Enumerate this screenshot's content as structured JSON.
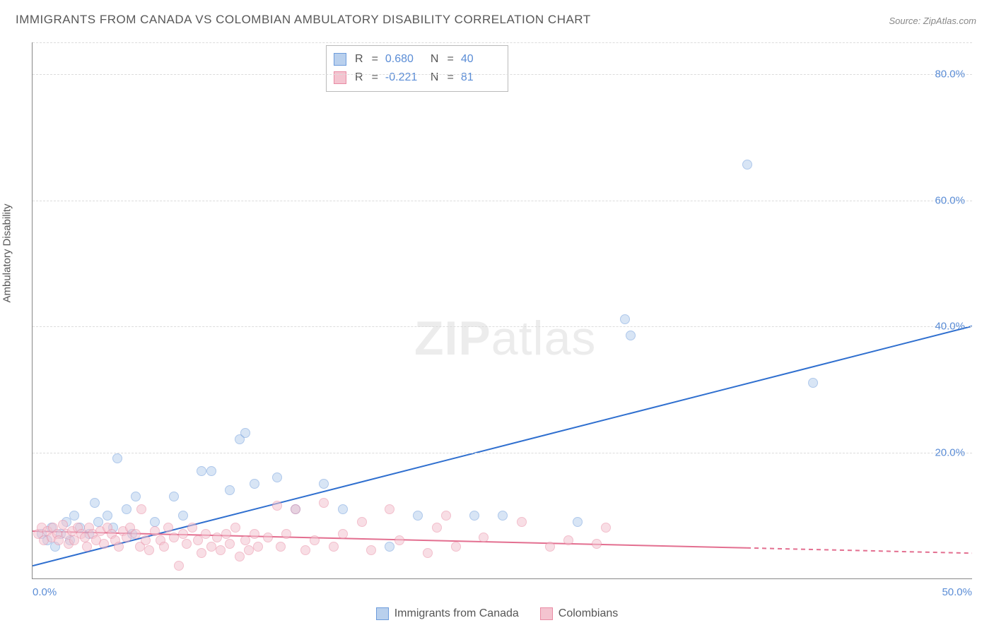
{
  "title": "IMMIGRANTS FROM CANADA VS COLOMBIAN AMBULATORY DISABILITY CORRELATION CHART",
  "source": "Source: ZipAtlas.com",
  "y_axis_label": "Ambulatory Disability",
  "watermark_a": "ZIP",
  "watermark_b": "atlas",
  "chart": {
    "type": "scatter",
    "xlim": [
      0,
      50
    ],
    "ylim": [
      0,
      85
    ],
    "x_ticks": [
      "0.0%",
      "50.0%"
    ],
    "y_ticks": [
      {
        "v": 20,
        "label": "20.0%"
      },
      {
        "v": 40,
        "label": "40.0%"
      },
      {
        "v": 60,
        "label": "60.0%"
      },
      {
        "v": 80,
        "label": "80.0%"
      }
    ],
    "grid_color": "#dcdcdc",
    "axis_color": "#888888",
    "background_color": "#ffffff",
    "point_radius": 7,
    "point_opacity": 0.55,
    "series": [
      {
        "name": "Immigrants from Canada",
        "fill": "#b9d0ed",
        "stroke": "#6d9cdc",
        "reg_line_color": "#2f6fcf",
        "reg_line_width": 2,
        "reg_start": [
          0,
          2.0
        ],
        "reg_end": [
          50,
          40.0
        ],
        "reg_dash_from_x": null,
        "R": "0.680",
        "N": "40",
        "points": [
          [
            0.5,
            7
          ],
          [
            0.8,
            6
          ],
          [
            1.0,
            8
          ],
          [
            1.2,
            5
          ],
          [
            1.5,
            7
          ],
          [
            1.8,
            9
          ],
          [
            2.0,
            6
          ],
          [
            2.2,
            10
          ],
          [
            2.5,
            8
          ],
          [
            3.0,
            7
          ],
          [
            3.3,
            12
          ],
          [
            3.5,
            9
          ],
          [
            4.0,
            10
          ],
          [
            4.3,
            8
          ],
          [
            4.5,
            19
          ],
          [
            5.0,
            11
          ],
          [
            5.3,
            7
          ],
          [
            5.5,
            13
          ],
          [
            6.5,
            9
          ],
          [
            7.5,
            13
          ],
          [
            8.0,
            10
          ],
          [
            9.0,
            17
          ],
          [
            9.5,
            17
          ],
          [
            10.5,
            14
          ],
          [
            11.0,
            22
          ],
          [
            11.3,
            23
          ],
          [
            11.8,
            15
          ],
          [
            13.0,
            16
          ],
          [
            14.0,
            11
          ],
          [
            15.5,
            15
          ],
          [
            16.5,
            11
          ],
          [
            19.0,
            5
          ],
          [
            20.5,
            10
          ],
          [
            23.5,
            10
          ],
          [
            25.0,
            10
          ],
          [
            29.0,
            9
          ],
          [
            31.5,
            41
          ],
          [
            31.8,
            38.5
          ],
          [
            38.0,
            65.5
          ],
          [
            41.5,
            31
          ]
        ]
      },
      {
        "name": "Colombians",
        "fill": "#f4c4d0",
        "stroke": "#e98ba4",
        "reg_line_color": "#e36f90",
        "reg_line_width": 2,
        "reg_start": [
          0,
          7.5
        ],
        "reg_end": [
          50,
          4.0
        ],
        "reg_dash_from_x": 38,
        "R": "-0.221",
        "N": "81",
        "points": [
          [
            0.3,
            7
          ],
          [
            0.5,
            8
          ],
          [
            0.6,
            6
          ],
          [
            0.8,
            7.5
          ],
          [
            1.0,
            6.5
          ],
          [
            1.1,
            8
          ],
          [
            1.3,
            7
          ],
          [
            1.4,
            6
          ],
          [
            1.6,
            8.5
          ],
          [
            1.8,
            7
          ],
          [
            1.9,
            5.5
          ],
          [
            2.1,
            7.5
          ],
          [
            2.2,
            6
          ],
          [
            2.4,
            8
          ],
          [
            2.6,
            7
          ],
          [
            2.8,
            6.5
          ],
          [
            2.9,
            5
          ],
          [
            3.0,
            8
          ],
          [
            3.2,
            7
          ],
          [
            3.4,
            6
          ],
          [
            3.6,
            7.5
          ],
          [
            3.8,
            5.5
          ],
          [
            4.0,
            8
          ],
          [
            4.2,
            7
          ],
          [
            4.4,
            6
          ],
          [
            4.6,
            5
          ],
          [
            4.8,
            7.5
          ],
          [
            5.0,
            6.5
          ],
          [
            5.2,
            8
          ],
          [
            5.5,
            7
          ],
          [
            5.7,
            5
          ],
          [
            5.8,
            11
          ],
          [
            6.0,
            6
          ],
          [
            6.2,
            4.5
          ],
          [
            6.5,
            7.5
          ],
          [
            6.8,
            6
          ],
          [
            7.0,
            5
          ],
          [
            7.2,
            8
          ],
          [
            7.5,
            6.5
          ],
          [
            7.8,
            2
          ],
          [
            8.0,
            7
          ],
          [
            8.2,
            5.5
          ],
          [
            8.5,
            8
          ],
          [
            8.8,
            6
          ],
          [
            9.0,
            4
          ],
          [
            9.2,
            7
          ],
          [
            9.5,
            5
          ],
          [
            9.8,
            6.5
          ],
          [
            10.0,
            4.5
          ],
          [
            10.3,
            7
          ],
          [
            10.5,
            5.5
          ],
          [
            10.8,
            8
          ],
          [
            11.0,
            3.5
          ],
          [
            11.3,
            6
          ],
          [
            11.5,
            4.5
          ],
          [
            11.8,
            7
          ],
          [
            12.0,
            5
          ],
          [
            12.5,
            6.5
          ],
          [
            13.0,
            11.5
          ],
          [
            13.2,
            5
          ],
          [
            13.5,
            7
          ],
          [
            14.0,
            11
          ],
          [
            14.5,
            4.5
          ],
          [
            15.0,
            6
          ],
          [
            15.5,
            12
          ],
          [
            16.0,
            5
          ],
          [
            16.5,
            7
          ],
          [
            17.5,
            9
          ],
          [
            18.0,
            4.5
          ],
          [
            19.0,
            11
          ],
          [
            19.5,
            6
          ],
          [
            21.0,
            4
          ],
          [
            21.5,
            8
          ],
          [
            22.0,
            10
          ],
          [
            22.5,
            5
          ],
          [
            24.0,
            6.5
          ],
          [
            26.0,
            9
          ],
          [
            27.5,
            5
          ],
          [
            28.5,
            6
          ],
          [
            30.0,
            5.5
          ],
          [
            30.5,
            8
          ]
        ]
      }
    ]
  },
  "legend": {
    "series1": "Immigrants from Canada",
    "series2": "Colombians"
  },
  "stats_labels": {
    "R": "R",
    "eq": "=",
    "N": "N"
  }
}
